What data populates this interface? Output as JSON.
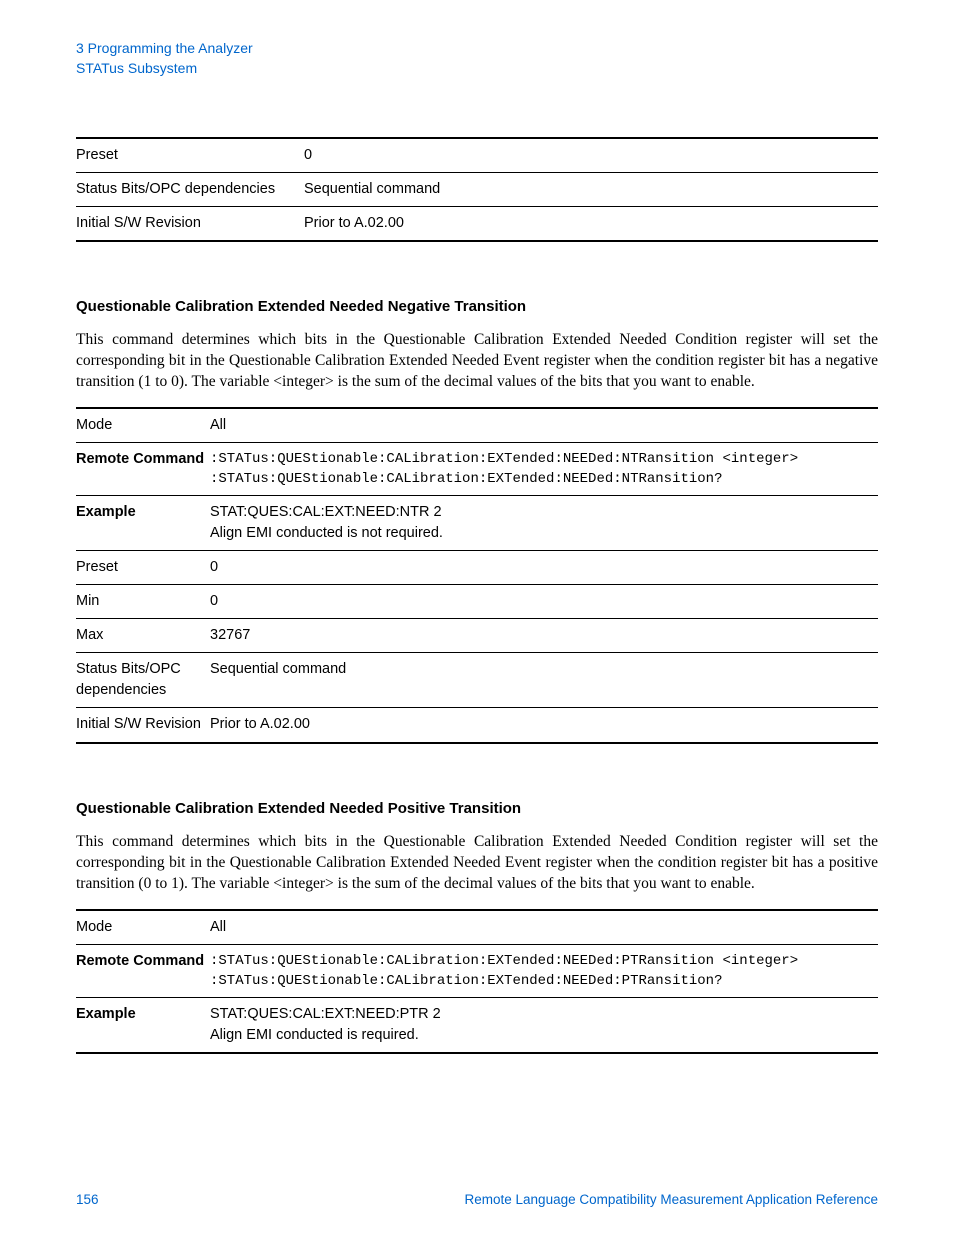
{
  "breadcrumb": {
    "line1": "3  Programming the Analyzer",
    "line2": "STATus Subsystem"
  },
  "table1": {
    "rows": [
      {
        "label": "Preset",
        "value": "0",
        "bold": false
      },
      {
        "label": "Status Bits/OPC dependencies",
        "value": "Sequential command",
        "bold": false
      },
      {
        "label": "Initial S/W Revision",
        "value": "Prior to A.02.00",
        "bold": false
      }
    ]
  },
  "section1": {
    "heading": "Questionable Calibration Extended Needed Negative Transition",
    "para": "This command determines which bits in the Questionable Calibration Extended Needed Condition register will set the corresponding bit in the Questionable Calibration Extended Needed Event register when the condition register bit has a negative transition (1 to 0). The variable <integer> is the sum of the decimal values of the bits that you want to enable."
  },
  "table2": {
    "rows": [
      {
        "label": "Mode",
        "value": "All",
        "bold": false,
        "mono": false
      },
      {
        "label": "Remote Command",
        "value": ":STATus:QUEStionable:CALibration:EXTended:NEEDed:NTRansition <integer>\n:STATus:QUEStionable:CALibration:EXTended:NEEDed:NTRansition?",
        "bold": true,
        "mono": true
      },
      {
        "label": "Example",
        "value": "STAT:QUES:CAL:EXT:NEED:NTR 2\nAlign EMI conducted is not required.",
        "bold": true,
        "mono": false
      },
      {
        "label": "Preset",
        "value": "0",
        "bold": false,
        "mono": false
      },
      {
        "label": "Min",
        "value": "0",
        "bold": false,
        "mono": false
      },
      {
        "label": "Max",
        "value": "32767",
        "bold": false,
        "mono": false
      },
      {
        "label": "Status Bits/OPC dependencies",
        "value": "Sequential command",
        "bold": false,
        "mono": false
      },
      {
        "label": "Initial S/W Revision",
        "value": "Prior to A.02.00",
        "bold": false,
        "mono": false
      }
    ]
  },
  "section2": {
    "heading": "Questionable Calibration Extended Needed Positive Transition",
    "para": "This command determines which bits in the Questionable Calibration Extended Needed Condition register will set the corresponding bit in the Questionable Calibration Extended Needed Event register when the condition register bit has a positive transition (0 to 1). The variable <integer> is the sum of the decimal values of the bits that you want to enable."
  },
  "table3": {
    "rows": [
      {
        "label": "Mode",
        "value": "All",
        "bold": false,
        "mono": false
      },
      {
        "label": "Remote Command",
        "value": ":STATus:QUEStionable:CALibration:EXTended:NEEDed:PTRansition <integer>\n:STATus:QUEStionable:CALibration:EXTended:NEEDed:PTRansition?",
        "bold": true,
        "mono": true
      },
      {
        "label": "Example",
        "value": "STAT:QUES:CAL:EXT:NEED:PTR 2\nAlign EMI conducted is required.",
        "bold": true,
        "mono": false
      }
    ]
  },
  "footer": {
    "page": "156",
    "title": "Remote Language Compatibility Measurement Application Reference"
  }
}
